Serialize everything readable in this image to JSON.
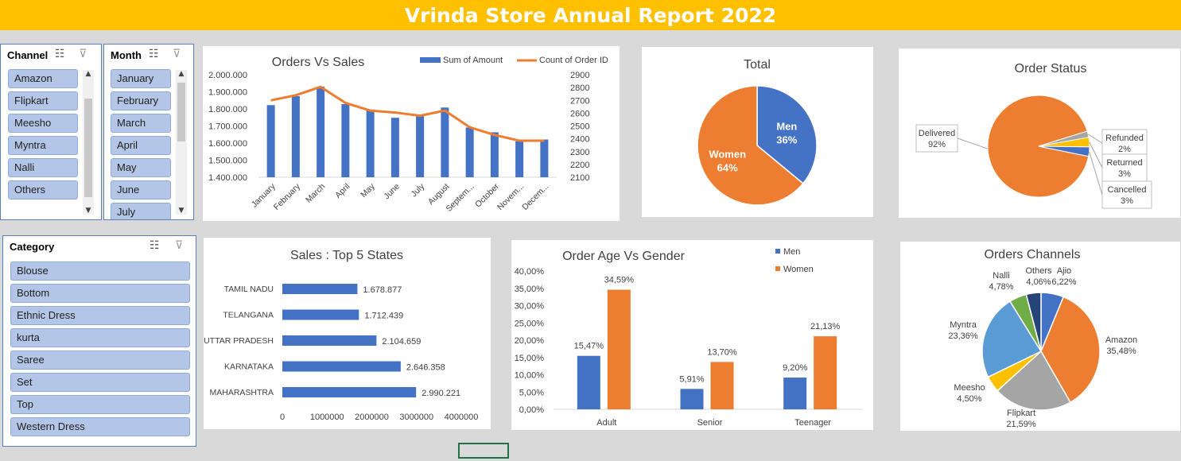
{
  "banner": {
    "title": "Vrinda Store Annual Report 2022"
  },
  "colors": {
    "blue": "#4472c4",
    "orange": "#ed7d31",
    "gray": "#a5a5a5",
    "yellow": "#ffc000",
    "lightblue": "#5b9bd5",
    "green": "#70ad47",
    "navy": "#264478",
    "slicer": "#b4c6e7"
  },
  "icons": {
    "multiselect": "multi-select-icon",
    "clearfilter": "clear-filter-icon"
  },
  "slicers": {
    "channel": {
      "title": "Channel",
      "items": [
        "Amazon",
        "Flipkart",
        "Meesho",
        "Myntra",
        "Nalli",
        "Others"
      ]
    },
    "month": {
      "title": "Month",
      "items": [
        "January",
        "February",
        "March",
        "April",
        "May",
        "June",
        "July"
      ]
    },
    "category": {
      "title": "Category",
      "items": [
        "Blouse",
        "Bottom",
        "Ethnic Dress",
        "kurta",
        "Saree",
        "Set",
        "Top",
        "Western Dress"
      ]
    }
  },
  "chart_data": [
    {
      "type": "bar+line",
      "title": "Orders Vs Sales",
      "categories": [
        "January",
        "February",
        "March",
        "April",
        "May",
        "June",
        "July",
        "August",
        "Septem...",
        "October",
        "Novem...",
        "Decem..."
      ],
      "series": [
        {
          "name": "Sum of Amount",
          "type": "bar",
          "axis": "left",
          "values": [
            1822000,
            1875000,
            1930000,
            1828000,
            1796000,
            1748000,
            1767000,
            1808000,
            1691000,
            1663000,
            1610000,
            1621000
          ]
        },
        {
          "name": "Count of Order ID",
          "type": "line",
          "axis": "right",
          "values": [
            2700,
            2740,
            2805,
            2680,
            2620,
            2605,
            2580,
            2620,
            2490,
            2430,
            2385,
            2385
          ]
        }
      ],
      "y_left": {
        "ticks": [
          "2.000.000",
          "1.900.000",
          "1.800.000",
          "1.700.000",
          "1.600.000",
          "1.500.000",
          "1.400.000"
        ],
        "min": 1400000,
        "max": 2000000
      },
      "y_right": {
        "ticks": [
          "2900",
          "2800",
          "2700",
          "2600",
          "2500",
          "2400",
          "2300",
          "2200",
          "2100"
        ],
        "min": 2100,
        "max": 2900
      },
      "legend": "top-right"
    },
    {
      "type": "pie",
      "title": "Total",
      "slices": [
        {
          "name": "Men",
          "pct": "36%",
          "value": 36
        },
        {
          "name": "Women",
          "pct": "64%",
          "value": 64
        }
      ]
    },
    {
      "type": "pie",
      "title": "Order Status",
      "slices": [
        {
          "name": "Delivered",
          "pct": "92%",
          "value": 92
        },
        {
          "name": "Refunded",
          "pct": "2%",
          "value": 2
        },
        {
          "name": "Returned",
          "pct": "3%",
          "value": 3
        },
        {
          "name": "Cancelled",
          "pct": "3%",
          "value": 3
        }
      ]
    },
    {
      "type": "bar",
      "orientation": "horizontal",
      "title": "Sales : Top 5 States",
      "categories": [
        "TAMIL NADU",
        "TELANGANA",
        "UTTAR PRADESH",
        "KARNATAKA",
        "MAHARASHTRA"
      ],
      "values": [
        1678877,
        1712439,
        2104659,
        2646358,
        2990221
      ],
      "labels": [
        "1.678.877",
        "1.712.439",
        "2.104.659",
        "2.646.358",
        "2.990.221"
      ],
      "x_ticks": [
        "0",
        "1000000",
        "2000000",
        "3000000",
        "4000000"
      ],
      "xlim": [
        0,
        4000000
      ]
    },
    {
      "type": "bar",
      "title": "Order Age Vs Gender",
      "categories": [
        "Adult",
        "Senior",
        "Teenager"
      ],
      "series": [
        {
          "name": "Men",
          "values": [
            15.47,
            5.91,
            9.2
          ],
          "labels": [
            "15,47%",
            "5,91%",
            "9,20%"
          ]
        },
        {
          "name": "Women",
          "values": [
            34.59,
            13.7,
            21.13
          ],
          "labels": [
            "34,59%",
            "13,70%",
            "21,13%"
          ]
        }
      ],
      "y_ticks": [
        "40,00%",
        "35,00%",
        "30,00%",
        "25,00%",
        "20,00%",
        "15,00%",
        "10,00%",
        "5,00%",
        "0,00%"
      ],
      "ylim": [
        0,
        40
      ],
      "legend": "top-right"
    },
    {
      "type": "pie",
      "title": "Orders Channels",
      "slices": [
        {
          "name": "Ajio",
          "pct": "6,22%",
          "value": 6.22
        },
        {
          "name": "Amazon",
          "pct": "35,48%",
          "value": 35.48
        },
        {
          "name": "Flipkart",
          "pct": "21,59%",
          "value": 21.59
        },
        {
          "name": "Meesho",
          "pct": "4,50%",
          "value": 4.5
        },
        {
          "name": "Myntra",
          "pct": "23,36%",
          "value": 23.36
        },
        {
          "name": "Nalli",
          "pct": "4,78%",
          "value": 4.78
        },
        {
          "name": "Others",
          "pct": "4,06%",
          "value": 4.06
        }
      ]
    }
  ]
}
